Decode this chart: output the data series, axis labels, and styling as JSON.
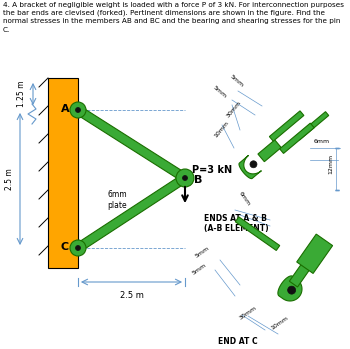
{
  "title_text": "4. A bracket of negligible weight is loaded with a force P of 3 kN. For interconnection purposes\nthe bar ends are clevised (forked). Pertinent dimensions are shown in the figure. Find the\nnormal stresses in the members AB and BC and the bearing and shearing stresses for the pin\nC.",
  "bg_color": "#ffffff",
  "gold_color": "#FFA500",
  "green_color": "#3aaa35",
  "dark_green": "#1a6e00",
  "blue_dim": "#6699cc",
  "label_A": "A",
  "label_B": "B",
  "label_C": "C",
  "dim_125": "1.25 m",
  "dim_25_left": "2.5 m",
  "dim_25_bot": "2.5 m",
  "plate_label": "6mm\nplate",
  "force_label": "P=3 kN",
  "ends_label": "ENDS AT A & B\n(A-B ELEMENT)",
  "end_c_label": "END AT C"
}
